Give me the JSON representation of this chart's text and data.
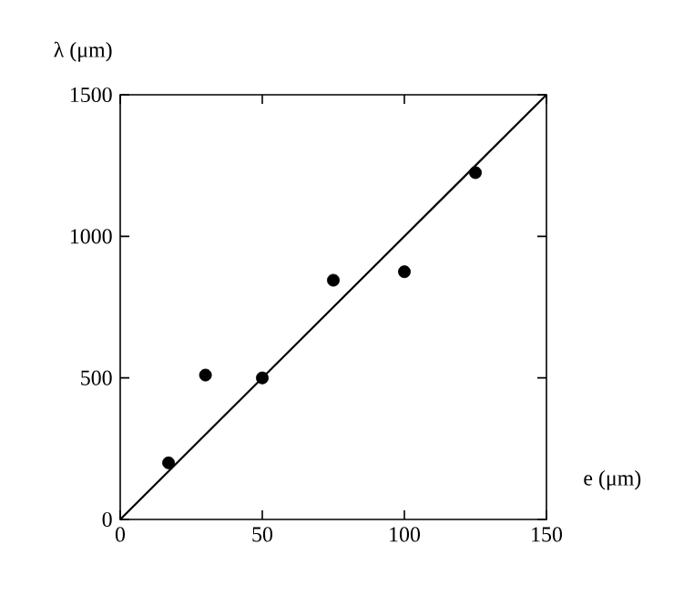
{
  "chart_data": {
    "type": "scatter",
    "xlabel": "e (μm)",
    "ylabel": "λ (μm)",
    "marker": "circle",
    "xlim": [
      0,
      150
    ],
    "ylim": [
      0,
      1500
    ],
    "xticks": [
      0,
      50,
      100,
      150
    ],
    "yticks": [
      0,
      500,
      1000,
      1500
    ],
    "series": [
      {
        "color": "#000000",
        "x": [
          17,
          30,
          50,
          75,
          100,
          125
        ],
        "values": [
          200,
          510,
          500,
          845,
          875,
          1225
        ]
      },
      {
        "type": "line",
        "color": "#000000",
        "line_style": "solid",
        "marker": "none",
        "x": [
          0,
          150
        ],
        "values": [
          0,
          1500
        ]
      }
    ]
  }
}
